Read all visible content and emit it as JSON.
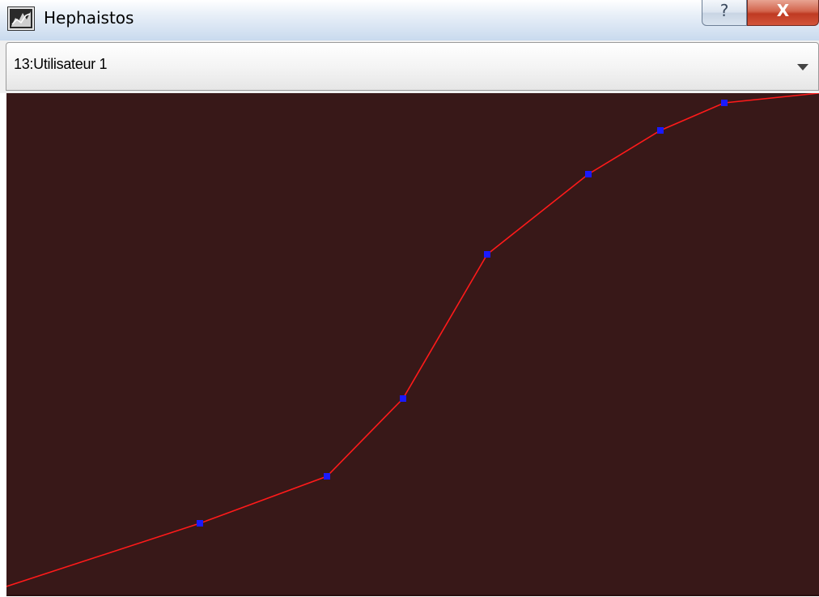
{
  "window": {
    "title": "Hephaistos",
    "icon": "hephaistos-app-icon"
  },
  "caption": {
    "help_label": "?",
    "close_label": "X",
    "close_color": "#c0392b"
  },
  "selector": {
    "value": "13:Utilisateur 1",
    "arrow_icon": "chevron-down-icon"
  },
  "curve": {
    "background_color": "#381818",
    "line_color": "#ff1a1a",
    "point_color": "#1a1aff",
    "xlim": [
      0,
      1004
    ],
    "ylim": [
      0,
      619
    ],
    "line_points": [
      [
        0,
        10
      ],
      [
        239,
        88
      ],
      [
        396,
        146
      ],
      [
        490,
        242
      ],
      [
        594,
        420
      ],
      [
        719,
        519
      ],
      [
        808,
        573
      ],
      [
        887,
        607
      ],
      [
        1004,
        619
      ]
    ],
    "control_points": [
      [
        239,
        88
      ],
      [
        396,
        146
      ],
      [
        490,
        242
      ],
      [
        594,
        420
      ],
      [
        719,
        519
      ],
      [
        808,
        573
      ],
      [
        887,
        607
      ]
    ]
  }
}
